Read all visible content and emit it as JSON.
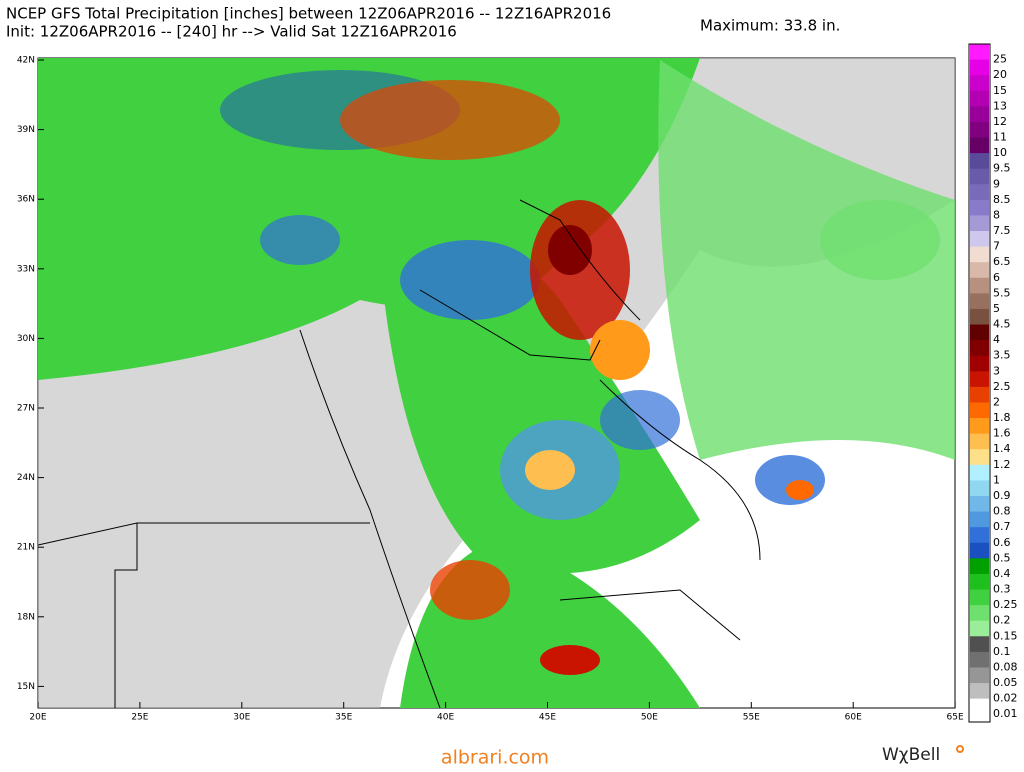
{
  "header": {
    "title": "NCEP GFS Total Precipitation [inches] between 12Z06APR2016 -- 12Z16APR2016",
    "subtitle": "Init: 12Z06APR2016 -- [240] hr --> Valid Sat 12Z16APR2016",
    "maximum": "Maximum: 33.8 in."
  },
  "map": {
    "lat_labels": [
      "42N",
      "39N",
      "36N",
      "33N",
      "30N",
      "27N",
      "24N",
      "21N",
      "18N",
      "15N"
    ],
    "lon_labels": [
      "20E",
      "25E",
      "30E",
      "35E",
      "40E",
      "45E",
      "50E",
      "55E",
      "60E",
      "65E"
    ]
  },
  "legend": {
    "items": [
      {
        "label": "25",
        "color": "#ff1aff"
      },
      {
        "label": "20",
        "color": "#e600e6"
      },
      {
        "label": "15",
        "color": "#cc00cc"
      },
      {
        "label": "13",
        "color": "#b300b3"
      },
      {
        "label": "12",
        "color": "#990099"
      },
      {
        "label": "11",
        "color": "#800080"
      },
      {
        "label": "10",
        "color": "#660066"
      },
      {
        "label": "9.5",
        "color": "#5a4a9a"
      },
      {
        "label": "9",
        "color": "#6a5aaa"
      },
      {
        "label": "8.5",
        "color": "#7a6aba"
      },
      {
        "label": "8",
        "color": "#8a7aca"
      },
      {
        "label": "7.5",
        "color": "#a69ad6"
      },
      {
        "label": "7",
        "color": "#d0c8ec"
      },
      {
        "label": "6.5",
        "color": "#f0dcd0"
      },
      {
        "label": "6",
        "color": "#d8b8a8"
      },
      {
        "label": "5.5",
        "color": "#b89080"
      },
      {
        "label": "5",
        "color": "#987060"
      },
      {
        "label": "4.5",
        "color": "#7a5040"
      },
      {
        "label": "4",
        "color": "#600000"
      },
      {
        "label": "3.5",
        "color": "#800000"
      },
      {
        "label": "3",
        "color": "#a00000"
      },
      {
        "label": "2.5",
        "color": "#c81400"
      },
      {
        "label": "2",
        "color": "#e84000"
      },
      {
        "label": "1.8",
        "color": "#ff6a00"
      },
      {
        "label": "1.6",
        "color": "#ff9a1a"
      },
      {
        "label": "1.4",
        "color": "#ffbe50"
      },
      {
        "label": "1.2",
        "color": "#ffe08a"
      },
      {
        "label": "1",
        "color": "#b0f0ff"
      },
      {
        "label": "0.9",
        "color": "#90d8f0"
      },
      {
        "label": "0.8",
        "color": "#70b8e8"
      },
      {
        "label": "0.7",
        "color": "#5098e0"
      },
      {
        "label": "0.6",
        "color": "#3070d8"
      },
      {
        "label": "0.5",
        "color": "#1a50c0"
      },
      {
        "label": "0.4",
        "color": "#00a000"
      },
      {
        "label": "0.3",
        "color": "#1ec01e"
      },
      {
        "label": "0.25",
        "color": "#40d040"
      },
      {
        "label": "0.2",
        "color": "#6ee06e"
      },
      {
        "label": "0.15",
        "color": "#9aee9a"
      },
      {
        "label": "0.1",
        "color": "#505050"
      },
      {
        "label": "0.08",
        "color": "#707070"
      },
      {
        "label": "0.05",
        "color": "#969696"
      },
      {
        "label": "0.02",
        "color": "#bebebe"
      },
      {
        "label": "0.01",
        "color": "#ffffff"
      }
    ]
  },
  "footer": {
    "site": "albrari.com",
    "brand": "WχBell"
  }
}
